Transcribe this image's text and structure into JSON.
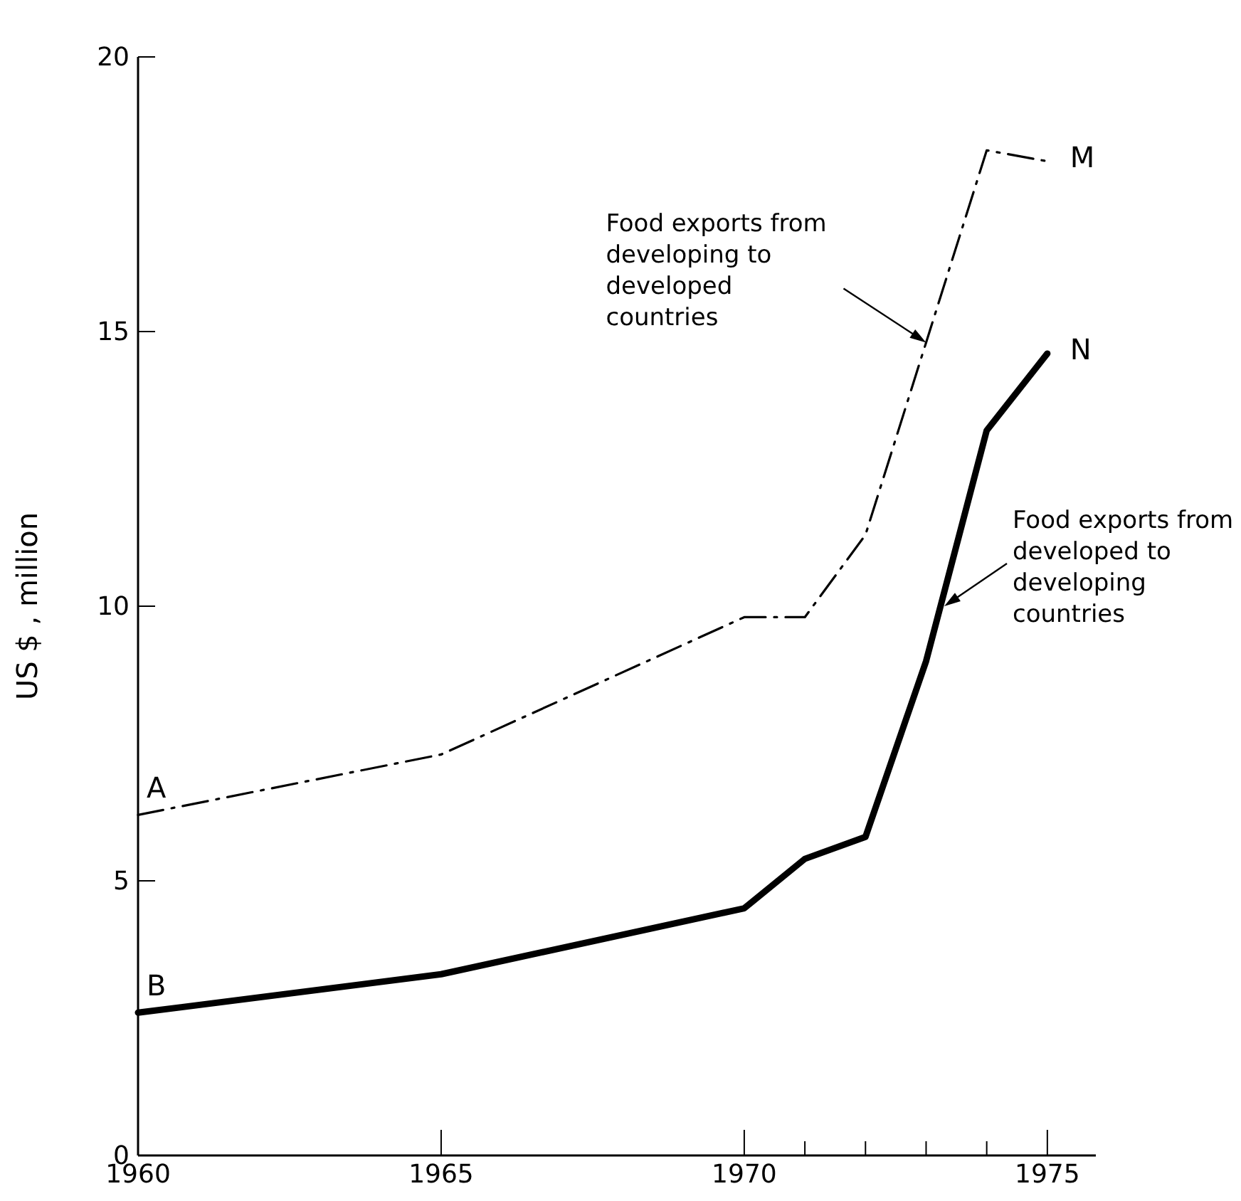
{
  "chart_data": {
    "type": "line",
    "ylabel": "US $ ,   million",
    "x": [
      1960,
      1965,
      1970,
      1971,
      1972,
      1973,
      1974,
      1975
    ],
    "series": [
      {
        "color": "#000000",
        "line_style": "dashed",
        "values": [
          6.2,
          7.3,
          9.8,
          9.8,
          11.3,
          14.8,
          18.3,
          18.1
        ]
      },
      {
        "color": "#000000",
        "line_style": "solid",
        "values": [
          2.6,
          3.3,
          4.5,
          5.4,
          5.8,
          9.0,
          13.2,
          14.6
        ]
      }
    ],
    "xlim": [
      1960,
      1975.8
    ],
    "xticks": [
      1960,
      1965,
      1970,
      {
        "value": 1971,
        "label": null
      },
      {
        "value": 1972,
        "label": null
      },
      {
        "value": 1973,
        "label": null
      },
      {
        "value": 1974,
        "label": null
      },
      1975
    ],
    "ylim": [
      0,
      20
    ],
    "yticks": [
      0,
      5,
      10,
      15,
      20
    ],
    "marker": "none",
    "annotations": [
      {
        "text": "A",
        "x": 1960,
        "y": 6.2
      },
      {
        "text": "B",
        "x": 1960,
        "y": 2.6
      },
      {
        "text": "M",
        "x": 1975,
        "y": 18.1
      },
      {
        "text": "N",
        "x": 1975,
        "y": 14.6
      },
      {
        "text": "Food exports from developing to developed countries",
        "x": 1973,
        "y": 14.8
      },
      {
        "text": "Food exports from developed to developing countries",
        "x": 1973.3,
        "y": 10.0
      }
    ]
  }
}
